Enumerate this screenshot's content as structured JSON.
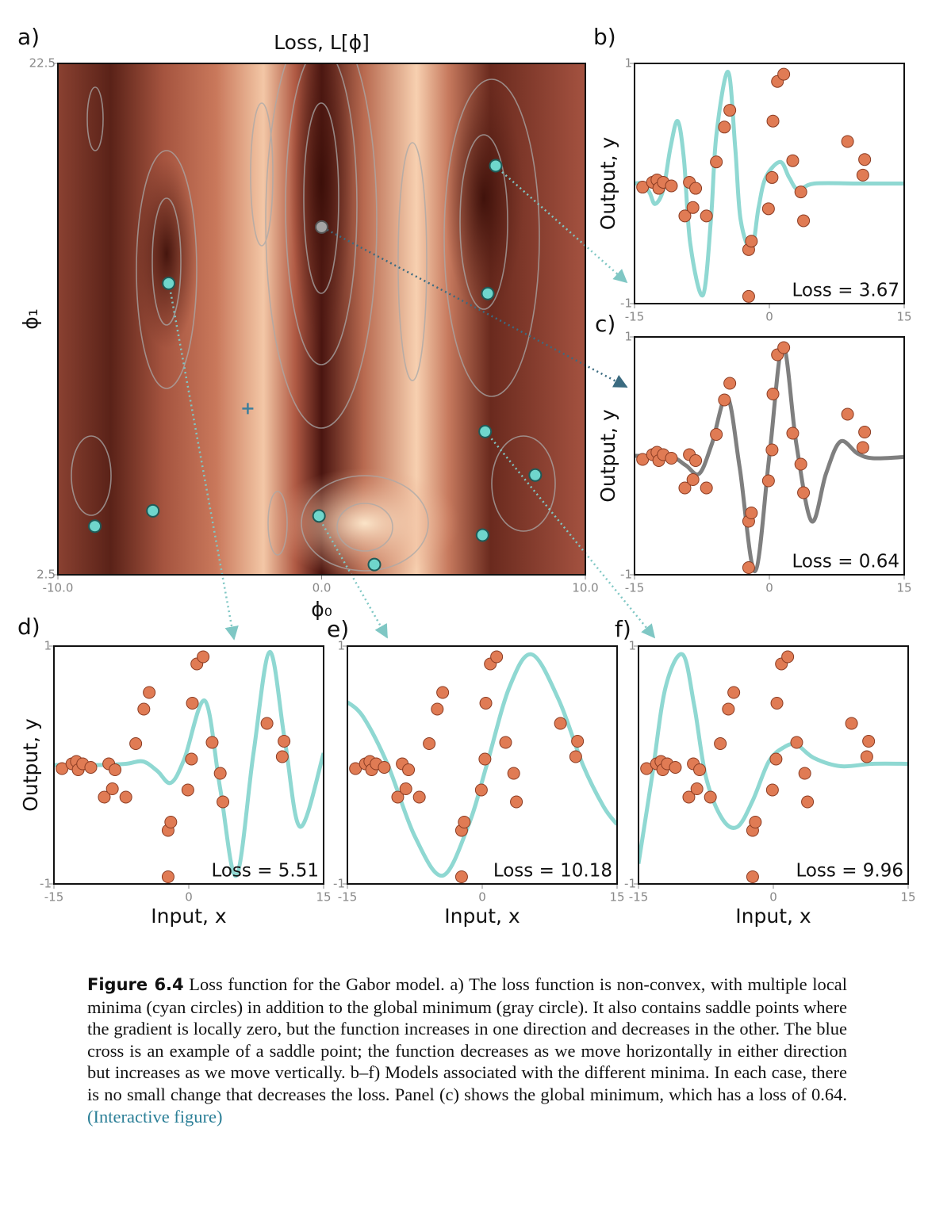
{
  "chart_data": [
    {
      "type": "contour",
      "label": "a)",
      "title": "Loss, L[ϕ]",
      "xlabel": "ϕ₀",
      "ylabel": "ϕ₁",
      "xlim": [
        -10,
        10
      ],
      "ylim": [
        2.5,
        22.5
      ],
      "xticks": [
        {
          "value": -10,
          "label": "-10.0"
        },
        {
          "value": 0,
          "label": "0.0"
        },
        {
          "value": 10,
          "label": "10.0"
        }
      ],
      "yticks": [
        2.5,
        22.5
      ],
      "global_minimum": {
        "x": 0.0,
        "y": 16.1,
        "color": "#a4a4a4"
      },
      "local_minima": {
        "color": "#6fd6cc",
        "x": [
          6.6,
          -5.8,
          6.3,
          6.2,
          8.1,
          -0.1,
          6.1,
          2.0,
          -6.4,
          -8.6
        ],
        "y": [
          18.5,
          13.9,
          13.5,
          8.1,
          6.4,
          4.8,
          4.05,
          2.9,
          5.0,
          4.4
        ]
      },
      "saddle_point": {
        "x": -2.8,
        "y": 9.0,
        "color": "#3d7f9c"
      }
    },
    {
      "type": "line",
      "label": "b)",
      "ylabel": "Output, y",
      "annotation": "Loss = 3.67",
      "xlim": [
        -15,
        15
      ],
      "xticks": [
        -15,
        0,
        15
      ],
      "ylim": [
        -1,
        1
      ],
      "yticks": [
        -1,
        1
      ],
      "x": [
        -15,
        -14,
        -13.3,
        -12.7,
        -11.8,
        -11,
        -10.2,
        -9.5,
        -8.8,
        -7.4,
        -6.5,
        -5.9,
        -4.6,
        -3.8,
        -3.2,
        -2.0,
        -1.2,
        -0.4,
        1.2,
        2.2,
        3.2,
        5,
        10,
        15
      ],
      "series": [
        {
          "color": "#8fd8d2",
          "values": [
            0,
            0,
            -0.08,
            -0.17,
            -0.05,
            0.3,
            0.52,
            0.2,
            -0.5,
            -0.93,
            -0.3,
            0.4,
            0.93,
            0.3,
            -0.3,
            -0.55,
            -0.2,
            0.05,
            0.18,
            0.05,
            -0.05,
            0,
            0,
            0
          ]
        }
      ]
    },
    {
      "type": "line",
      "label": "c)",
      "ylabel": "Output, y",
      "annotation": "Loss = 0.64",
      "xlim": [
        -15,
        15
      ],
      "xticks": [
        -15,
        0,
        15
      ],
      "ylim": [
        -1,
        1
      ],
      "yticks": [
        -1,
        1
      ],
      "x": [
        -15,
        -11,
        -9.3,
        -7.8,
        -6.4,
        -4.7,
        -3.3,
        -1.6,
        0,
        1.5,
        3,
        4.7,
        6.3,
        7.9,
        9.8,
        11.5,
        15
      ],
      "series": [
        {
          "color": "#7f7f7f",
          "values": [
            0,
            -0.01,
            -0.08,
            -0.15,
            0.1,
            0.5,
            -0.1,
            -0.97,
            0,
            0.93,
            0.1,
            -0.55,
            -0.15,
            0.12,
            0.02,
            -0.02,
            -0.01
          ]
        }
      ]
    },
    {
      "type": "line",
      "label": "d)",
      "ylabel": "Output, y",
      "xlabel": "Input, x",
      "annotation": "Loss = 5.51",
      "xlim": [
        -15,
        15
      ],
      "xticks": [
        -15,
        0,
        15
      ],
      "ylim": [
        -1,
        1
      ],
      "yticks": [
        -1,
        1
      ],
      "x": [
        -15,
        -10,
        -7,
        -5.1,
        -3.5,
        -2.0,
        -0.5,
        1.8,
        3.5,
        5.3,
        7.2,
        9.0,
        10.7,
        12.4,
        15
      ],
      "series": [
        {
          "color": "#8fd8d2",
          "values": [
            0,
            0,
            0.01,
            0.03,
            -0.05,
            -0.15,
            0.05,
            0.54,
            -0.2,
            -0.93,
            0.1,
            0.95,
            0.2,
            -0.52,
            0.1
          ]
        }
      ]
    },
    {
      "type": "line",
      "label": "e)",
      "xlabel": "Input, x",
      "annotation": "Loss = 10.18",
      "xlim": [
        -15,
        15
      ],
      "xticks": [
        -15,
        0,
        15
      ],
      "ylim": [
        -1,
        1
      ],
      "yticks": [
        -1,
        1
      ],
      "x": [
        -15,
        -13.2,
        -10.5,
        -7.5,
        -4.4,
        -1.5,
        0.5,
        3,
        5.5,
        8.5,
        11.2,
        13.5,
        15
      ],
      "series": [
        {
          "color": "#8fd8d2",
          "values": [
            0.53,
            0.4,
            0,
            -0.6,
            -0.93,
            -0.5,
            0,
            0.65,
            0.93,
            0.55,
            0,
            -0.35,
            -0.5
          ]
        }
      ]
    },
    {
      "type": "line",
      "label": "f)",
      "xlabel": "Input, x",
      "annotation": "Loss = 9.96",
      "xlim": [
        -15,
        15
      ],
      "xticks": [
        -15,
        0,
        15
      ],
      "ylim": [
        -1,
        1
      ],
      "yticks": [
        -1,
        1
      ],
      "x": [
        -15,
        -13.5,
        -12,
        -10.1,
        -8.8,
        -7.5,
        -5.7,
        -4.0,
        -2.3,
        -0.5,
        1.2,
        2.6,
        4.5,
        7.5,
        11,
        15
      ],
      "series": [
        {
          "color": "#8fd8d2",
          "values": [
            -0.83,
            -0.1,
            0.65,
            0.93,
            0.5,
            -0.1,
            -0.45,
            -0.52,
            -0.3,
            0.03,
            0.15,
            0.17,
            0.06,
            -0.01,
            0.01,
            0.01
          ]
        }
      ]
    }
  ],
  "shared_points": {
    "color": "#e07b54",
    "x": [
      -14.1,
      -13.0,
      -12.5,
      -12.3,
      -11.8,
      -10.9,
      -8.9,
      -8.2,
      -9.4,
      -8.5,
      -7.0,
      -5.9,
      -5.0,
      -4.4,
      -2.3,
      -2.0,
      -2.3,
      -0.1,
      0.3,
      0.4,
      0.9,
      1.6,
      2.6,
      3.5,
      3.8,
      8.7,
      10.6,
      10.4
    ],
    "y": [
      -0.03,
      0.01,
      0.03,
      -0.04,
      0.01,
      -0.02,
      0.01,
      -0.04,
      -0.27,
      -0.2,
      -0.27,
      0.18,
      0.47,
      0.61,
      -0.55,
      -0.48,
      -0.94,
      -0.21,
      0.05,
      0.52,
      0.85,
      0.91,
      0.19,
      -0.07,
      -0.31,
      0.35,
      0.2,
      0.07
    ]
  },
  "caption": {
    "label": "Figure 6.4",
    "text": "Loss function for the Gabor model. a) The loss function is non-convex, with multiple local minima (cyan circles) in addition to the global minimum (gray circle). It also contains saddle points where the gradient is locally zero, but the function increases in one direction and decreases in the other. The blue cross is an example of a saddle point; the function decreases as we move horizontally in either direction but increases as we move vertically. b–f) Models associated with the different minima. In each case, there is no small change that decreases the loss. Panel (c) shows the global minimum, which has a loss of 0.64.",
    "link": "(Interactive figure)"
  }
}
